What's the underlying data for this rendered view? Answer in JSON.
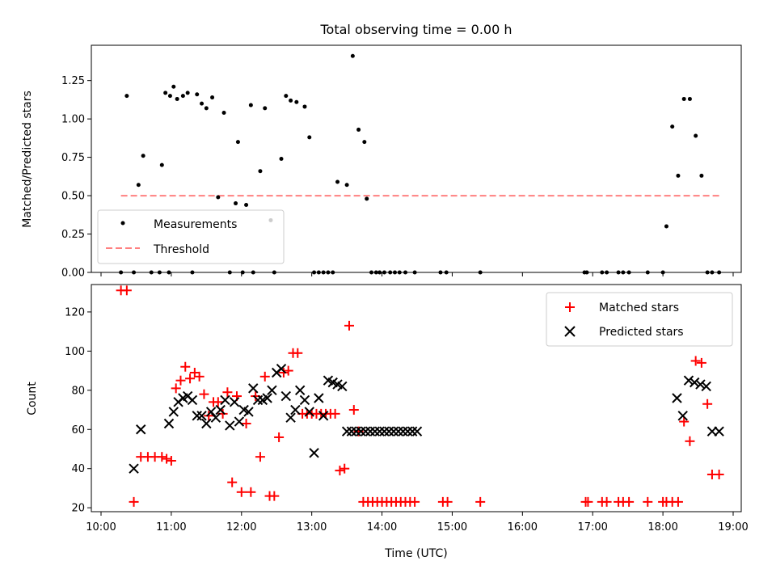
{
  "chart_data": [
    {
      "type": "scatter",
      "title": "Total observing time = 0.00 h",
      "xlabel": "",
      "ylabel": "Matched/Predicted stars",
      "xlim": [
        "10:00",
        "19:00"
      ],
      "ylim": [
        0,
        1.48
      ],
      "yticks": [
        "0.00",
        "0.25",
        "0.50",
        "0.75",
        "1.00",
        "1.25"
      ],
      "legend_position": "lower-left",
      "threshold": {
        "name": "Threshold",
        "value": 0.5,
        "x_range": [
          "10:17",
          "18:48"
        ],
        "color": "#ff8080",
        "style": "dashed"
      },
      "series": [
        {
          "name": "Measurements",
          "color": "#000000",
          "marker": "dot",
          "x": [
            "10:17",
            "10:22",
            "10:28",
            "10:32",
            "10:36",
            "10:43",
            "10:50",
            "10:52",
            "10:55",
            "10:58",
            "10:59",
            "11:02",
            "11:05",
            "11:10",
            "11:14",
            "11:18",
            "11:22",
            "11:26",
            "11:30",
            "11:35",
            "11:40",
            "11:45",
            "11:50",
            "11:55",
            "11:57",
            "12:01",
            "12:04",
            "12:08",
            "12:10",
            "12:16",
            "12:20",
            "12:25",
            "12:28",
            "12:34",
            "12:38",
            "12:42",
            "12:47",
            "12:54",
            "12:58",
            "13:02",
            "13:06",
            "13:10",
            "13:14",
            "13:18",
            "13:22",
            "13:30",
            "13:35",
            "13:40",
            "13:45",
            "13:47",
            "13:51",
            "13:55",
            "13:58",
            "14:02",
            "14:07",
            "14:11",
            "14:15",
            "14:20",
            "14:28",
            "14:50",
            "14:55",
            "15:24",
            "16:53",
            "16:55",
            "17:08",
            "17:12",
            "17:22",
            "17:26",
            "17:31",
            "17:47",
            "18:00",
            "18:03",
            "18:08",
            "18:13",
            "18:18",
            "18:23",
            "18:28",
            "18:33",
            "18:38",
            "18:42",
            "18:48"
          ],
          "y": [
            0,
            1.15,
            0,
            0.57,
            0.76,
            0,
            0,
            0.7,
            1.17,
            0,
            1.15,
            1.21,
            1.13,
            1.15,
            1.17,
            0,
            1.16,
            1.1,
            1.07,
            1.14,
            0.49,
            1.04,
            0,
            0.45,
            0.85,
            0,
            0.44,
            1.09,
            0,
            0.66,
            1.07,
            0.34,
            0,
            0.74,
            1.15,
            1.12,
            1.11,
            1.08,
            0.88,
            0,
            0,
            0,
            0,
            0,
            0.59,
            0.57,
            1.41,
            0.93,
            0.85,
            0.48,
            0,
            0,
            0,
            0,
            0,
            0,
            0,
            0,
            0,
            0,
            0,
            0,
            0,
            0,
            0,
            0,
            0,
            0,
            0,
            0,
            0,
            0.3,
            0.95,
            0.63,
            1.13,
            1.13,
            0.89,
            0.63,
            0,
            0,
            0
          ]
        }
      ]
    },
    {
      "type": "scatter",
      "title": "",
      "xlabel": "Time (UTC)",
      "ylabel": "Count",
      "xlim": [
        "10:00",
        "19:00"
      ],
      "xticks": [
        "10:00",
        "11:00",
        "12:00",
        "13:00",
        "14:00",
        "15:00",
        "16:00",
        "17:00",
        "18:00",
        "19:00"
      ],
      "ylim": [
        18,
        134
      ],
      "yticks": [
        "20",
        "40",
        "60",
        "80",
        "100",
        "120"
      ],
      "legend_position": "top-right",
      "series": [
        {
          "name": "Matched stars",
          "color": "#ff0000",
          "marker": "plus",
          "x": [
            "10:17",
            "10:22",
            "10:28",
            "10:34",
            "10:40",
            "10:46",
            "10:52",
            "10:56",
            "11:00",
            "11:04",
            "11:08",
            "11:12",
            "11:16",
            "11:20",
            "11:24",
            "11:28",
            "11:32",
            "11:36",
            "11:40",
            "11:44",
            "11:48",
            "11:52",
            "11:56",
            "12:00",
            "12:04",
            "12:08",
            "12:12",
            "12:16",
            "12:20",
            "12:24",
            "12:28",
            "12:32",
            "12:36",
            "12:40",
            "12:44",
            "12:48",
            "12:52",
            "12:56",
            "13:00",
            "13:04",
            "13:08",
            "13:12",
            "13:16",
            "13:20",
            "13:24",
            "13:28",
            "13:32",
            "13:36",
            "13:40",
            "13:44",
            "13:48",
            "13:52",
            "13:56",
            "14:00",
            "14:04",
            "14:08",
            "14:12",
            "14:16",
            "14:20",
            "14:24",
            "14:28",
            "14:52",
            "14:56",
            "15:24",
            "16:54",
            "16:56",
            "17:08",
            "17:12",
            "17:22",
            "17:26",
            "17:31",
            "17:47",
            "18:00",
            "18:03",
            "18:08",
            "18:13",
            "18:18",
            "18:23",
            "18:28",
            "18:33",
            "18:38",
            "18:42",
            "18:48"
          ],
          "y": [
            131,
            131,
            23,
            46,
            46,
            46,
            46,
            45,
            44,
            81,
            85,
            92,
            86,
            89,
            87,
            78,
            67,
            74,
            74,
            68,
            79,
            33,
            77,
            28,
            63,
            28,
            77,
            46,
            87,
            26,
            26,
            56,
            89,
            90,
            99,
            99,
            68,
            68,
            68,
            68,
            68,
            68,
            68,
            68,
            39,
            40,
            113,
            70,
            59,
            23,
            23,
            23,
            23,
            23,
            23,
            23,
            23,
            23,
            23,
            23,
            23,
            23,
            23,
            23,
            23,
            23,
            23,
            23,
            23,
            23,
            23,
            23,
            23,
            23,
            23,
            23,
            64,
            54,
            95,
            94,
            73,
            37,
            37
          ]
        },
        {
          "name": "Predicted stars",
          "color": "#000000",
          "marker": "x",
          "x": [
            "10:28",
            "10:34",
            "10:58",
            "11:02",
            "11:06",
            "11:10",
            "11:14",
            "11:18",
            "11:22",
            "11:26",
            "11:30",
            "11:34",
            "11:38",
            "11:42",
            "11:46",
            "11:50",
            "11:54",
            "11:58",
            "12:02",
            "12:06",
            "12:10",
            "12:14",
            "12:18",
            "12:22",
            "12:26",
            "12:30",
            "12:34",
            "12:38",
            "12:42",
            "12:46",
            "12:50",
            "12:54",
            "12:58",
            "13:02",
            "13:06",
            "13:10",
            "13:14",
            "13:18",
            "13:22",
            "13:26",
            "13:30",
            "13:34",
            "13:38",
            "13:42",
            "13:46",
            "13:50",
            "13:54",
            "13:58",
            "14:02",
            "14:06",
            "14:10",
            "14:14",
            "14:18",
            "14:22",
            "14:26",
            "14:30",
            "18:12",
            "18:17",
            "18:22",
            "18:27",
            "18:32",
            "18:37",
            "18:42",
            "18:48"
          ],
          "y": [
            40,
            60,
            63,
            69,
            74,
            76,
            77,
            75,
            67,
            67,
            63,
            69,
            66,
            70,
            75,
            62,
            74,
            64,
            70,
            69,
            81,
            75,
            75,
            76,
            80,
            89,
            91,
            77,
            66,
            70,
            80,
            75,
            69,
            48,
            76,
            67,
            85,
            84,
            83,
            82,
            59,
            59,
            59,
            59,
            59,
            59,
            59,
            59,
            59,
            59,
            59,
            59,
            59,
            59,
            59,
            59,
            76,
            67,
            85,
            84,
            83,
            82,
            59,
            59
          ]
        }
      ]
    }
  ]
}
